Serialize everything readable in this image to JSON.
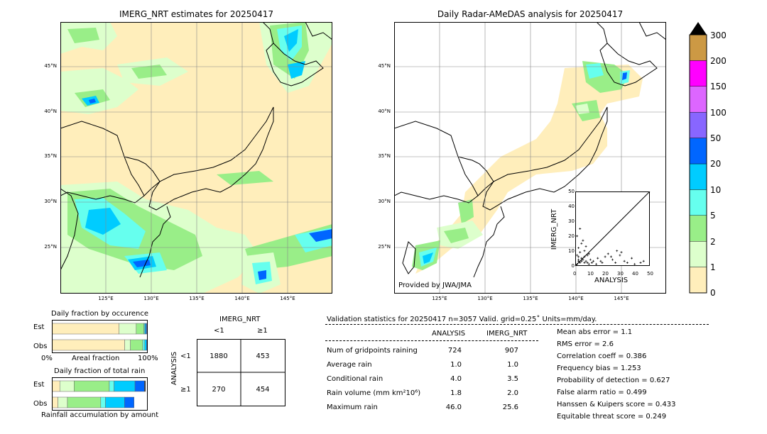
{
  "chart_data": [
    {
      "type": "heatmap",
      "title": "IMERG_NRT estimates for 20250417",
      "lat_ticks": [
        "45°N",
        "40°N",
        "35°N",
        "30°N",
        "25°N"
      ],
      "lon_ticks": [
        "125°E",
        "130°E",
        "135°E",
        "140°E",
        "145°E"
      ],
      "extent": {
        "lon": [
          120,
          150
        ],
        "lat": [
          20,
          50
        ]
      }
    },
    {
      "type": "heatmap",
      "title": "Daily Radar-AMeDAS analysis for 20250417",
      "lat_ticks": [
        "45°N",
        "40°N",
        "35°N",
        "30°N",
        "25°N"
      ],
      "lon_ticks": [
        "125°E",
        "130°E",
        "135°E",
        "140°E",
        "145°E"
      ],
      "extent": {
        "lon": [
          120,
          150
        ],
        "lat": [
          20,
          50
        ]
      },
      "annotation": "Provided by JWA/JMA"
    },
    {
      "type": "scatter",
      "xlabel": "ANALYSIS",
      "ylabel": "IMERG_NRT",
      "xlim": [
        0,
        50
      ],
      "ylim": [
        0,
        50
      ],
      "ticks": [
        "0",
        "10",
        "20",
        "30",
        "40",
        "50"
      ],
      "x": [
        1,
        2,
        3,
        4,
        5,
        6,
        7,
        8,
        9,
        10,
        2,
        3,
        1,
        4,
        6,
        8,
        12,
        15,
        18,
        20,
        22,
        25,
        28,
        30,
        33,
        35,
        38,
        40,
        44,
        46,
        3,
        5,
        7,
        2,
        4,
        6,
        1,
        2,
        9,
        11,
        14,
        17,
        24,
        27,
        31
      ],
      "y": [
        1,
        3,
        2,
        5,
        4,
        6,
        3,
        2,
        8,
        4,
        12,
        9,
        20,
        15,
        10,
        7,
        3,
        5,
        2,
        6,
        8,
        4,
        10,
        7,
        3,
        2,
        5,
        1,
        2,
        3,
        25,
        17,
        13,
        6,
        3,
        2,
        7,
        4,
        1,
        2,
        1,
        3,
        6,
        2,
        9
      ]
    },
    {
      "type": "bar",
      "title": "Daily fraction by occurence",
      "categories": [
        "Est",
        "Obs"
      ],
      "xlabel": "Areal fraction",
      "xticks": [
        "0%",
        "100%"
      ],
      "series": [
        {
          "color": "#ffeebb",
          "values": [
            0.703,
            0.762
          ]
        },
        {
          "color": "#ddffcc",
          "values": [
            0.18,
            0.06
          ]
        },
        {
          "color": "#99ee88",
          "values": [
            0.08,
            0.13
          ]
        },
        {
          "color": "#66ffee",
          "values": [
            0.01,
            0.02
          ]
        },
        {
          "color": "#00ccff",
          "values": [
            0.01,
            0.02
          ]
        },
        {
          "color": "#0066ff",
          "values": [
            0.01,
            0.01
          ]
        }
      ]
    },
    {
      "type": "bar",
      "title": "Daily fraction of total rain",
      "categories": [
        "Est",
        "Obs"
      ],
      "xlabel": "Rainfall accumulation by amount",
      "series": [
        {
          "color": "#ffeebb",
          "values": [
            0.08,
            0.06
          ]
        },
        {
          "color": "#ddffcc",
          "values": [
            0.15,
            0.1
          ]
        },
        {
          "color": "#99ee88",
          "values": [
            0.37,
            0.35
          ]
        },
        {
          "color": "#66ffee",
          "values": [
            0.05,
            0.05
          ]
        },
        {
          "color": "#00ccff",
          "values": [
            0.22,
            0.2
          ]
        },
        {
          "color": "#0066ff",
          "values": [
            0.1,
            0.1
          ]
        },
        {
          "color": "#000000",
          "values": [
            0.01,
            0.0
          ]
        }
      ]
    }
  ],
  "colorbar": {
    "ticks": [
      "0",
      "1",
      "2",
      "5",
      "10",
      "20",
      "50",
      "100",
      "150",
      "200",
      "300"
    ],
    "colors": [
      "#ffeebb",
      "#ddffcc",
      "#99ee88",
      "#66ffee",
      "#00ccff",
      "#0066ff",
      "#8866ff",
      "#dd66ff",
      "#ff00ff",
      "#cc9944"
    ],
    "over_color": "#000000"
  },
  "contingency": {
    "title": "IMERG_NRT",
    "col_labels": [
      "<1",
      "≥1"
    ],
    "row_title": "ANALYSIS",
    "row_labels": [
      "<1",
      "≥1"
    ],
    "cells": [
      [
        "1880",
        "453"
      ],
      [
        "270",
        "454"
      ]
    ]
  },
  "validation": {
    "header": "Validation statistics for 20250417  n=3057 Valid. grid=0.25˚ Units=mm/day.",
    "col_analysis": "ANALYSIS",
    "col_imerg": "IMERG_NRT",
    "rows": [
      {
        "label": "Num of gridpoints raining",
        "analysis": "724",
        "imerg": "907"
      },
      {
        "label": "Average rain",
        "analysis": "1.0",
        "imerg": "1.0"
      },
      {
        "label": "Conditional rain",
        "analysis": "4.0",
        "imerg": "3.5"
      },
      {
        "label": "Rain volume (mm km²10⁶)",
        "analysis": "1.8",
        "imerg": "2.0"
      },
      {
        "label": "Maximum rain",
        "analysis": "46.0",
        "imerg": "25.6"
      }
    ],
    "scores": [
      "Mean abs error =    1.1",
      "RMS error =    2.6",
      "Correlation coeff =  0.386",
      "Frequency bias =  1.253",
      "Probability of detection =  0.627",
      "False alarm ratio =  0.499",
      "Hanssen & Kuipers score =  0.433",
      "Equitable threat score =  0.249"
    ]
  }
}
